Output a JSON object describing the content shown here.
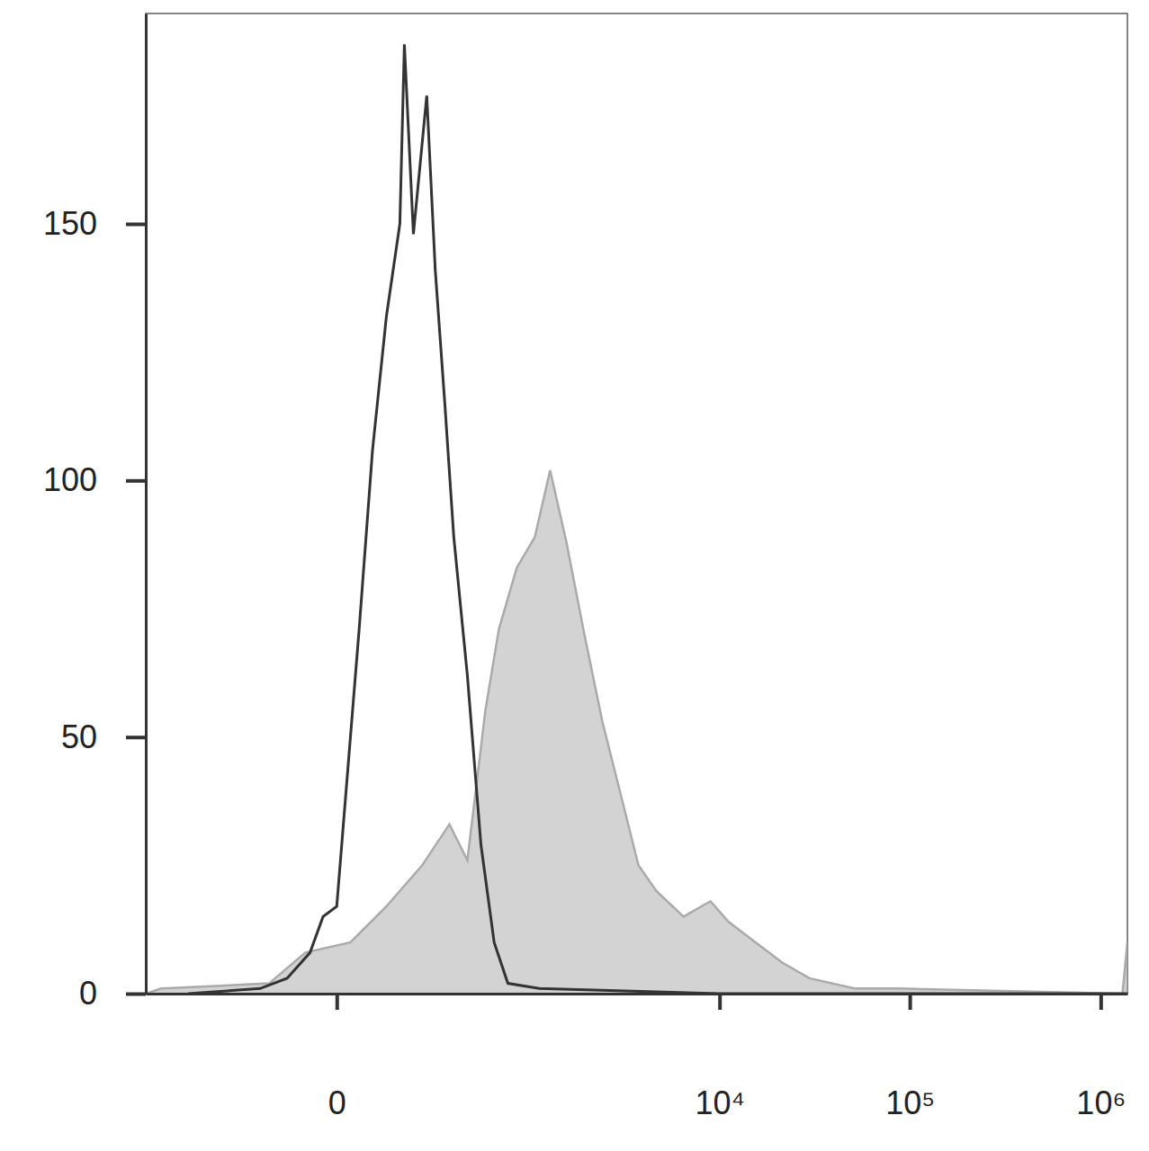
{
  "chart_data": {
    "type": "line",
    "log": "x",
    "xlim": [
      -900,
      1380000
    ],
    "xticks": [
      0,
      {
        "value": 10000,
        "label": "10⁴"
      },
      {
        "value": 100000,
        "label": "10⁵"
      },
      {
        "value": 1000000,
        "label": "10⁶"
      }
    ],
    "ylim": [
      0,
      191
    ],
    "yticks": [
      0,
      50,
      100,
      150
    ],
    "series": [
      {
        "type": "area",
        "color": "#d3d3d3",
        "x": [
          -900,
          -731,
          -126,
          -46,
          18,
          82,
          180,
          289,
          383,
          469,
          499,
          606,
          777,
          990,
          1210,
          1494,
          1880,
          2360,
          2960,
          3700,
          4620,
          6440,
          8960,
          11150,
          15490,
          21500,
          29800,
          51300,
          88400,
          1300000,
          1380000
        ],
        "values": [
          0,
          1,
          2,
          8,
          10,
          17,
          25,
          33,
          26,
          48,
          55,
          71,
          83,
          89,
          102,
          88,
          70,
          53,
          39,
          25,
          20,
          15,
          18,
          14,
          10,
          6,
          3,
          1,
          1,
          0,
          10
        ]
      },
      {
        "type": "line",
        "color": "#333333",
        "x": [
          -500,
          -152,
          -82,
          -38,
          -18,
          0,
          31,
          54,
          82,
          114,
          126,
          152,
          196,
          228,
          268,
          310,
          383,
          469,
          567,
          687,
          1050,
          10000,
          1380000
        ],
        "values": [
          0,
          1,
          3,
          8,
          15,
          17,
          71,
          106,
          132,
          150,
          185,
          148,
          175,
          141,
          115,
          89,
          62,
          29,
          10,
          2,
          1,
          0,
          0
        ]
      }
    ]
  }
}
